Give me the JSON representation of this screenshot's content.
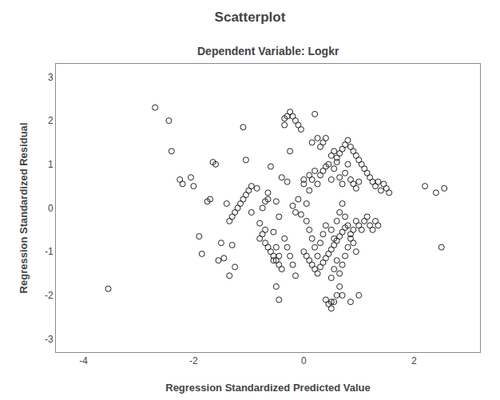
{
  "chart_data": {
    "type": "scatter",
    "title": "Scatterplot",
    "subtitle": "Dependent Variable: Logkr",
    "xlabel": "Regression Standardized Predicted Value",
    "ylabel": "Regression Standardized Residual",
    "xlim": [
      -4.5,
      3.2
    ],
    "ylim": [
      -3.3,
      3.3
    ],
    "xticks": [
      -4,
      -2,
      0,
      2
    ],
    "yticks": [
      -3,
      -2,
      -1,
      0,
      1,
      2,
      3
    ],
    "grid": false,
    "color": "#222222",
    "marker": "circle-open",
    "x": [
      -3.55,
      -2.7,
      -2.45,
      -2.4,
      -2.25,
      -2.2,
      -2.05,
      -2.0,
      -1.9,
      -1.85,
      -1.75,
      -1.7,
      -1.65,
      -1.6,
      -1.55,
      -1.5,
      -1.45,
      -1.4,
      -1.35,
      -1.3,
      -1.25,
      -1.1,
      -1.05,
      -0.95,
      -0.85,
      -0.8,
      -0.75,
      -0.7,
      -0.65,
      -0.6,
      -0.55,
      -0.5,
      -0.45,
      -0.4,
      -0.35,
      -0.3,
      -0.25,
      -0.2,
      -0.15,
      -0.1,
      -0.05,
      -0.7,
      -0.65,
      -0.55,
      -0.5,
      -0.45,
      -1.35,
      -1.3,
      -0.35,
      -0.3,
      -0.25,
      -0.2,
      -0.15,
      -0.5,
      -0.45,
      -0.1,
      -0.05,
      -0.25,
      -0.2,
      -0.35,
      -0.3,
      -0.15,
      0.0,
      0.0,
      0.05,
      0.1,
      0.15,
      0.2,
      0.25,
      0.3,
      0.35,
      0.4,
      0.1,
      0.15,
      0.2,
      0.25,
      0.3,
      0.35,
      0.4,
      0.05,
      0.1,
      0.15,
      0.2,
      0.25,
      0.3,
      0.35,
      0.4,
      0.0,
      0.05,
      0.1,
      0.15,
      0.2,
      0.25,
      0.3,
      0.35,
      0.4,
      0.45,
      0.4,
      0.45,
      0.5,
      0.5,
      0.45,
      0.5,
      0.55,
      0.6,
      0.65,
      0.7,
      0.75,
      0.8,
      0.85,
      0.9,
      0.95,
      1.0,
      0.5,
      0.55,
      0.6,
      0.65,
      0.7,
      0.75,
      0.8,
      0.85,
      0.9,
      0.95,
      1.0,
      1.05,
      0.5,
      0.55,
      0.6,
      0.65,
      0.7,
      0.75,
      0.8,
      0.85,
      0.9,
      0.95,
      0.5,
      0.55,
      0.6,
      0.65,
      0.7,
      0.75,
      0.5,
      0.55,
      0.6,
      0.65,
      0.7,
      0.75,
      0.8,
      0.85,
      0.9,
      0.95,
      1.0,
      0.85,
      1.1,
      1.15,
      1.2,
      1.25,
      1.3,
      1.35,
      1.4,
      1.45,
      1.5,
      1.55,
      0.55,
      0.6,
      0.65,
      0.7,
      1.0,
      1.05,
      1.1,
      1.15,
      1.2,
      1.25,
      1.3,
      1.35,
      2.2,
      2.4,
      2.5,
      2.55,
      -0.95,
      -1.0,
      -1.05,
      -1.1,
      -1.15,
      -1.2,
      -1.25,
      -0.8,
      -0.75,
      -0.7,
      -0.65,
      -0.6,
      -0.55,
      -0.5,
      -0.45,
      -0.4
    ],
    "values": [
      -1.85,
      2.3,
      2.0,
      1.3,
      0.65,
      0.55,
      0.7,
      0.5,
      -0.65,
      -1.05,
      0.15,
      0.2,
      1.05,
      1.0,
      -1.2,
      -0.8,
      -1.15,
      0.1,
      -1.55,
      -0.85,
      -1.35,
      1.85,
      1.1,
      -0.1,
      0.45,
      -0.35,
      0.0,
      -0.5,
      0.35,
      0.95,
      -0.55,
      0.15,
      -0.2,
      0.7,
      2.05,
      0.6,
      1.3,
      0.05,
      -0.1,
      0.2,
      -0.15,
      0.15,
      0.2,
      -1.2,
      -0.9,
      -1.1,
      -0.3,
      -0.2,
      -0.7,
      -0.9,
      -1.1,
      -1.3,
      -1.55,
      -1.8,
      -2.1,
      1.9,
      1.8,
      2.2,
      2.1,
      1.9,
      2.1,
      2.0,
      0.65,
      0.55,
      0.1,
      0.4,
      1.5,
      2.15,
      1.6,
      1.4,
      1.5,
      1.6,
      0.75,
      0.65,
      0.85,
      0.55,
      0.75,
      0.85,
      0.95,
      -0.3,
      -0.5,
      -0.7,
      -0.9,
      -1.1,
      -0.8,
      -0.6,
      -0.4,
      -1.0,
      -1.1,
      -1.2,
      -1.3,
      -1.4,
      -1.5,
      -1.35,
      -1.25,
      -1.15,
      -1.05,
      -2.1,
      -2.2,
      -2.15,
      -2.3,
      1.0,
      0.65,
      0.9,
      1.05,
      0.7,
      0.55,
      0.8,
      1.0,
      0.65,
      0.55,
      0.45,
      0.6,
      1.2,
      1.3,
      1.15,
      1.25,
      1.35,
      1.45,
      1.55,
      1.4,
      1.3,
      1.2,
      1.1,
      1.0,
      -0.5,
      -0.7,
      -0.3,
      -0.1,
      0.1,
      -0.2,
      -0.4,
      -0.6,
      -0.8,
      -1.0,
      -0.95,
      -0.85,
      -0.75,
      -0.65,
      -0.55,
      -0.45,
      -1.6,
      -1.4,
      -1.2,
      -1.5,
      -1.3,
      -1.1,
      -0.9,
      -0.7,
      -0.5,
      -0.3,
      -2.0,
      -2.15,
      0.9,
      0.8,
      0.7,
      0.6,
      0.5,
      0.6,
      0.4,
      0.55,
      0.45,
      0.35,
      -2.15,
      -2.0,
      -1.8,
      -2.0,
      -0.4,
      -0.5,
      -0.3,
      -0.2,
      -0.4,
      -0.5,
      -0.3,
      -0.4,
      0.5,
      0.35,
      -0.9,
      0.45,
      0.5,
      0.4,
      0.3,
      0.2,
      0.1,
      0.0,
      -0.1,
      -0.7,
      -0.6,
      -0.8,
      -0.9,
      -1.0,
      -1.1,
      -1.2,
      -1.3,
      -1.4
    ]
  }
}
